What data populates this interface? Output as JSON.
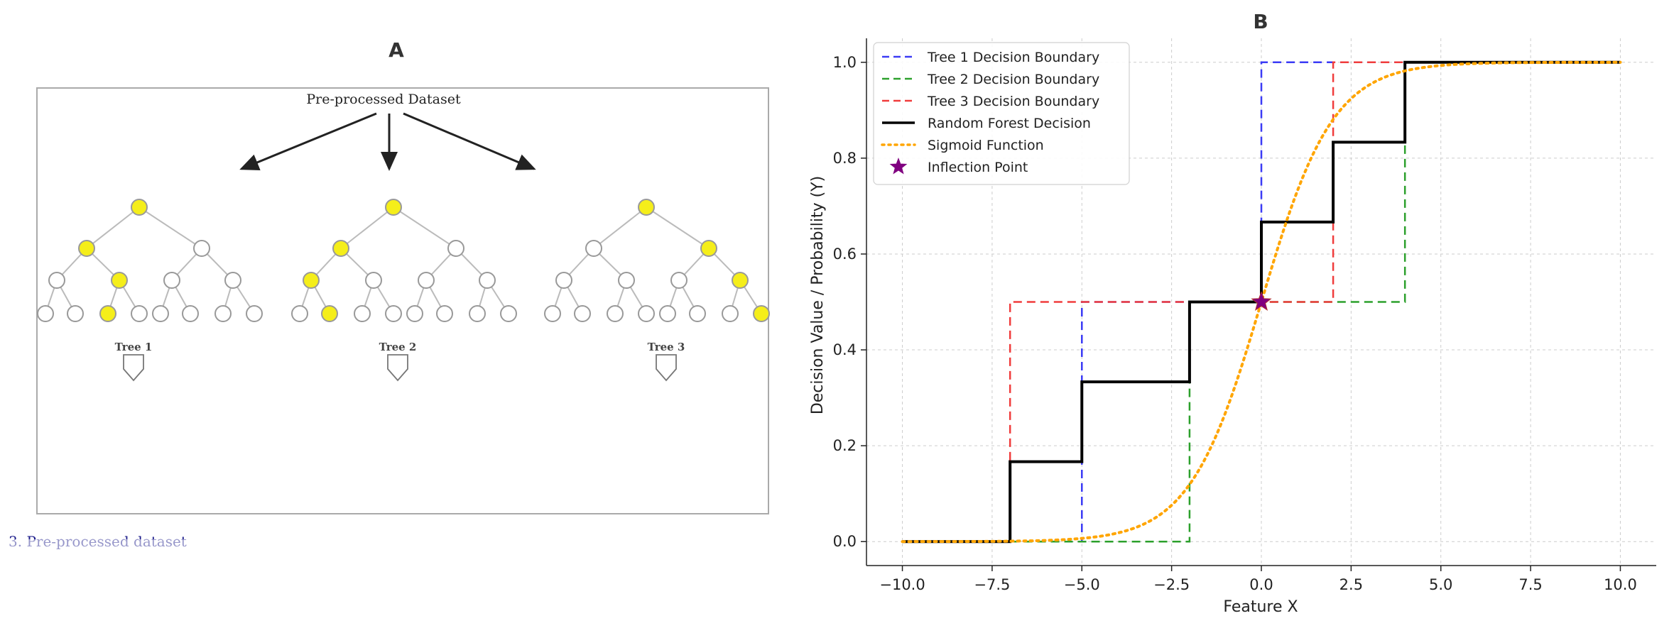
{
  "panel_a": {
    "label": "A",
    "dataset_label": "Pre-processed Dataset",
    "trees": [
      {
        "label": "Tree 1",
        "highlight_path": [
          "root",
          "L",
          "LR",
          "LRL"
        ]
      },
      {
        "label": "Tree 2",
        "highlight_path": [
          "root",
          "L",
          "LL",
          "LLR"
        ]
      },
      {
        "label": "Tree 3",
        "highlight_path": [
          "root",
          "R",
          "RR",
          "RRR"
        ]
      }
    ],
    "footer_text": "3. Pre-processed dataset",
    "colors": {
      "highlight": "#f5ee1a",
      "node_stroke": "#999999",
      "frame": "#aaaaaa"
    }
  },
  "chart_data": {
    "type": "line",
    "title": "B",
    "xlabel": "Feature X",
    "ylabel": "Decision Value / Probability (Y)",
    "xlim": [
      -11,
      11
    ],
    "ylim": [
      -0.05,
      1.05
    ],
    "xticks": [
      -10,
      -7.5,
      -5,
      -2.5,
      0,
      2.5,
      5,
      7.5,
      10
    ],
    "xtick_labels": [
      "−10.0",
      "−7.5",
      "−5.0",
      "−2.5",
      "0.0",
      "2.5",
      "5.0",
      "7.5",
      "10.0"
    ],
    "yticks": [
      0,
      0.2,
      0.4,
      0.6,
      0.8,
      1.0
    ],
    "ytick_labels": [
      "0.0",
      "0.2",
      "0.4",
      "0.6",
      "0.8",
      "1.0"
    ],
    "grid": true,
    "legend_position": "top-left",
    "series": [
      {
        "name": "Tree 1 Decision Boundary",
        "style": "dashed",
        "color": "#3b3bf5",
        "x": [
          -10,
          -5,
          -5,
          0,
          0,
          10
        ],
        "y": [
          0,
          0,
          0.5,
          0.5,
          1,
          1
        ]
      },
      {
        "name": "Tree 2 Decision Boundary",
        "style": "dashed",
        "color": "#2ca02c",
        "x": [
          -10,
          -2,
          -2,
          4,
          4,
          10
        ],
        "y": [
          0,
          0,
          0.5,
          0.5,
          1,
          1
        ]
      },
      {
        "name": "Tree 3 Decision Boundary",
        "style": "dashed",
        "color": "#f03c3c",
        "x": [
          -10,
          -7,
          -7,
          2,
          2,
          10
        ],
        "y": [
          0,
          0,
          0.5,
          0.5,
          1,
          1
        ]
      },
      {
        "name": "Random Forest Decision",
        "style": "solid",
        "color": "#000000",
        "x": [
          -10,
          -7,
          -7,
          -5,
          -5,
          -2,
          -2,
          0,
          0,
          2,
          2,
          4,
          4,
          10
        ],
        "y": [
          0,
          0,
          0.1667,
          0.1667,
          0.3333,
          0.3333,
          0.5,
          0.5,
          0.6667,
          0.6667,
          0.8333,
          0.8333,
          1,
          1
        ]
      },
      {
        "name": "Sigmoid Function",
        "style": "dotted",
        "color": "#ffa500",
        "function": "1/(1+exp(-x))",
        "domain": [
          -10,
          10
        ]
      }
    ],
    "points": [
      {
        "name": "Inflection Point",
        "x": 0,
        "y": 0.5,
        "marker": "star",
        "color": "#800080"
      }
    ]
  }
}
